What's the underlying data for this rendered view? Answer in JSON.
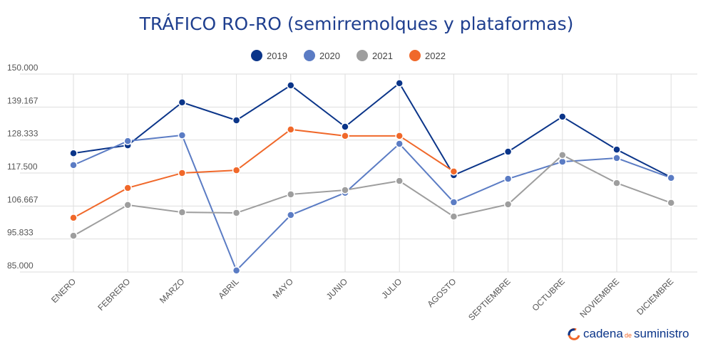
{
  "chart_data": {
    "type": "line",
    "title": "TRÁFICO RO-RO (semirremolques y plataformas)",
    "categories": [
      "ENERO",
      "FEBRERO",
      "MARZO",
      "ABRIL",
      "MAYO",
      "JUNIO",
      "JULIO",
      "AGOSTO",
      "SEPTIEMBRE",
      "OCTUBRE",
      "NOVIEMBRE",
      "DICIEMBRE"
    ],
    "series": [
      {
        "name": "2019",
        "color": "#0b3589",
        "values": [
          124000,
          126600,
          140700,
          134800,
          146300,
          132700,
          147000,
          116800,
          124500,
          136000,
          125200,
          116100
        ]
      },
      {
        "name": "2020",
        "color": "#5b7cc4",
        "values": [
          120100,
          128000,
          129900,
          85500,
          103700,
          111000,
          127100,
          107900,
          115600,
          121200,
          122400,
          115900
        ]
      },
      {
        "name": "2021",
        "color": "#9e9e9e",
        "values": [
          96900,
          107000,
          104600,
          104400,
          110500,
          111900,
          114900,
          103200,
          107200,
          123400,
          114200,
          107700
        ]
      },
      {
        "name": "2022",
        "color": "#f0682a",
        "values": [
          102800,
          112600,
          117500,
          118400,
          131800,
          129700,
          129700,
          118000,
          null,
          null,
          null,
          null
        ]
      }
    ],
    "ylim": [
      85000,
      150000
    ],
    "yticks": [
      {
        "value": 85000,
        "label": "85.000"
      },
      {
        "value": 95833,
        "label": "95.833"
      },
      {
        "value": 106667,
        "label": "106.667"
      },
      {
        "value": 117500,
        "label": "117.500"
      },
      {
        "value": 128333,
        "label": "128.333"
      },
      {
        "value": 139167,
        "label": "139.167"
      },
      {
        "value": 150000,
        "label": "150.000"
      }
    ],
    "grid": true,
    "legend": "top"
  },
  "branding": {
    "parts": [
      "cadena",
      "de",
      "suministro"
    ]
  }
}
